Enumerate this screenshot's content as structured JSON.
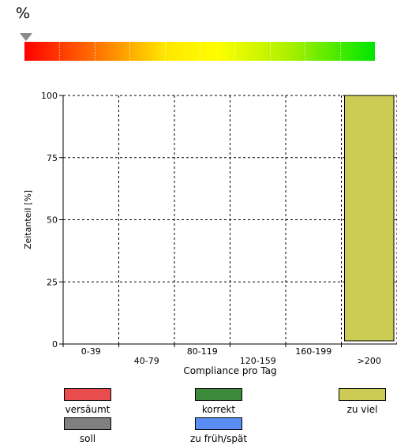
{
  "header": {
    "percent_symbol": "%"
  },
  "gradient": {
    "colors": [
      "#ff0000",
      "#ff8c00",
      "#ffe600",
      "#ffff00",
      "#aef000",
      "#00e600"
    ],
    "marker_color": "#8a8a8a"
  },
  "chart_data": {
    "type": "bar",
    "categories": [
      "0-39",
      "40-79",
      "80-119",
      "120-159",
      "160-199",
      ">200"
    ],
    "values": [
      0,
      0,
      0,
      0,
      0,
      100
    ],
    "xlabel": "Compliance pro Tag",
    "ylabel": "Zeitanteil [%]",
    "ylim": [
      0,
      100
    ],
    "yticks": [
      0,
      25,
      50,
      75,
      100
    ],
    "grid": true,
    "bar_color": "#cccc55"
  },
  "legend": {
    "items": [
      {
        "label": "versäumt",
        "color": "#e84c4c"
      },
      {
        "label": "korrekt",
        "color": "#3d8a3d"
      },
      {
        "label": "zu viel",
        "color": "#cccc55"
      },
      {
        "label": "soll",
        "color": "#808080"
      },
      {
        "label": "zu früh/spät",
        "color": "#5a8ef5"
      }
    ]
  }
}
